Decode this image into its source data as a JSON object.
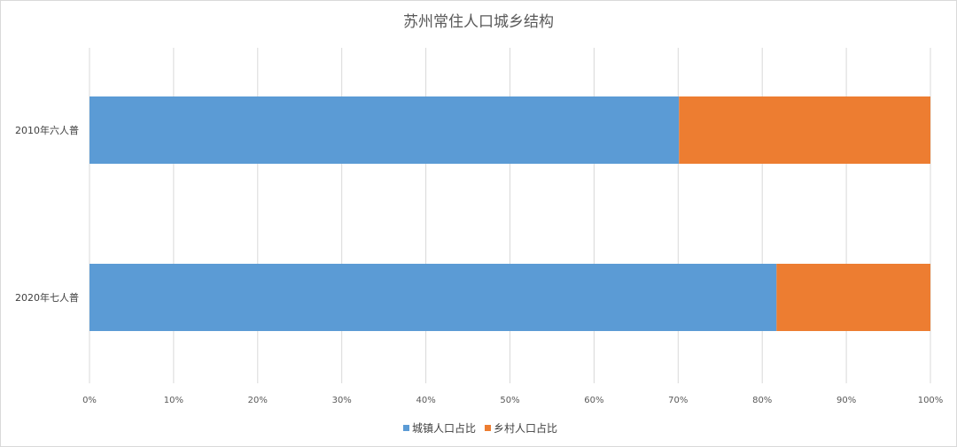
{
  "chart_data": {
    "type": "bar",
    "orientation": "horizontal",
    "stacked": "percent",
    "title": "苏州常住人口城乡结构",
    "categories": [
      "2010年六人普",
      "2020年七人普"
    ],
    "series": [
      {
        "name": "城镇人口占比",
        "color": "#5b9bd5",
        "values": [
          70.1,
          81.7
        ]
      },
      {
        "name": "乡村人口占比",
        "color": "#ed7d31",
        "values": [
          29.9,
          18.3
        ]
      }
    ],
    "xlim": [
      0,
      100
    ],
    "x_ticks": [
      "0%",
      "10%",
      "20%",
      "30%",
      "40%",
      "50%",
      "60%",
      "70%",
      "80%",
      "90%",
      "100%"
    ],
    "grid": "vertical",
    "legend_position": "bottom"
  }
}
